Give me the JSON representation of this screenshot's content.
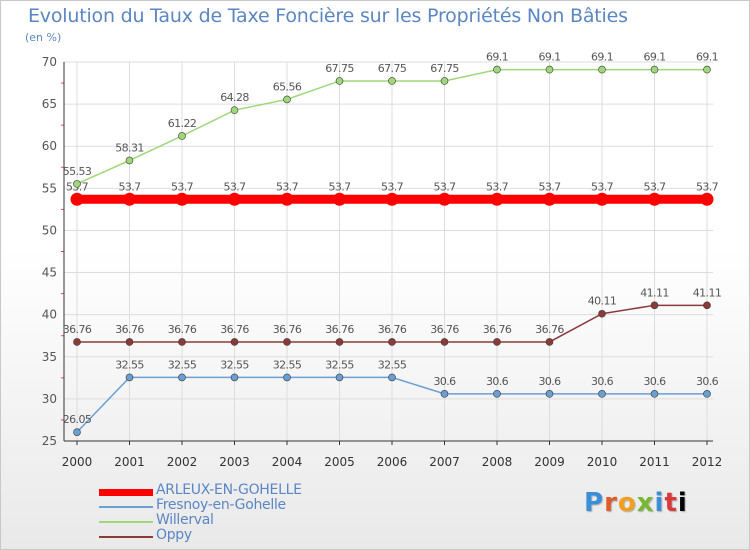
{
  "header": {
    "title": "Evolution du Taux de Taxe Foncière sur les Propriétés Non Bâties",
    "unit": "(en %)"
  },
  "logo": {
    "letters": [
      "P",
      "r",
      "o",
      "x",
      "i",
      "t",
      "i"
    ]
  },
  "chart_data": {
    "type": "line",
    "title": "Evolution du Taux de Taxe Foncière sur les Propriétés Non Bâties",
    "ylabel": "(en %)",
    "xlabel": "",
    "ylim": [
      25,
      70
    ],
    "yticks": [
      25,
      30,
      35,
      40,
      45,
      50,
      55,
      60,
      65,
      70
    ],
    "categories": [
      "2000",
      "2001",
      "2002",
      "2003",
      "2004",
      "2005",
      "2006",
      "2007",
      "2008",
      "2009",
      "2010",
      "2011",
      "2012"
    ],
    "grid": true,
    "legend_position": "bottom-left",
    "series": [
      {
        "name": "ARLEUX-EN-GOHELLE",
        "color": "#ff0000",
        "highlight": true,
        "values": [
          53.7,
          53.7,
          53.7,
          53.7,
          53.7,
          53.7,
          53.7,
          53.7,
          53.7,
          53.7,
          53.7,
          53.7,
          53.7
        ],
        "labels": [
          "53.7",
          "53.7",
          "53.7",
          "53.7",
          "53.7",
          "53.7",
          "53.7",
          "53.7",
          "53.7",
          "53.7",
          "53.7",
          "53.7",
          "53.7"
        ]
      },
      {
        "name": "Fresnoy-en-Gohelle",
        "color": "#6a9fd4",
        "highlight": false,
        "values": [
          26.05,
          32.55,
          32.55,
          32.55,
          32.55,
          32.55,
          32.55,
          30.6,
          30.6,
          30.6,
          30.6,
          30.6,
          30.6
        ],
        "labels": [
          "26.05",
          "32.55",
          "32.55",
          "32.55",
          "32.55",
          "32.55",
          "32.55",
          "30.6",
          "30.6",
          "30.6",
          "30.6",
          "30.6",
          "30.6"
        ]
      },
      {
        "name": "Willerval",
        "color": "#9ed87a",
        "highlight": false,
        "values": [
          55.53,
          58.31,
          61.22,
          64.28,
          65.56,
          67.75,
          67.75,
          67.75,
          69.1,
          69.1,
          69.1,
          69.1,
          69.1
        ],
        "labels": [
          "55.53",
          "58.31",
          "61.22",
          "64.28",
          "65.56",
          "67.75",
          "67.75",
          "67.75",
          "69.1",
          "69.1",
          "69.1",
          "69.1",
          "69.1"
        ]
      },
      {
        "name": "Oppy",
        "color": "#8b3a3a",
        "highlight": false,
        "values": [
          36.76,
          36.76,
          36.76,
          36.76,
          36.76,
          36.76,
          36.76,
          36.76,
          36.76,
          36.76,
          40.11,
          41.11,
          41.11
        ],
        "labels": [
          "36.76",
          "36.76",
          "36.76",
          "36.76",
          "36.76",
          "36.76",
          "36.76",
          "36.76",
          "36.76",
          "36.76",
          "40.11",
          "41.11",
          "41.11"
        ]
      }
    ]
  }
}
